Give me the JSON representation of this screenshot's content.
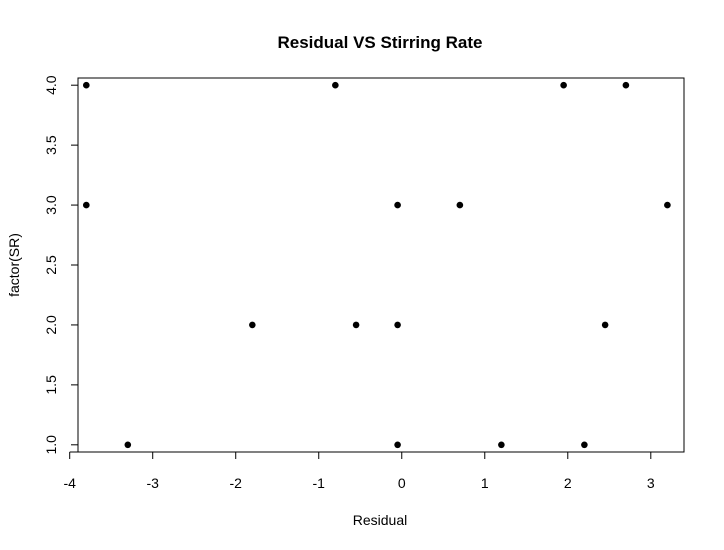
{
  "chart_data": {
    "type": "scatter",
    "title": "Residual VS Stirring Rate",
    "xlabel": "Residual",
    "ylabel": "factor(SR)",
    "xlim": [
      -3.9,
      3.4
    ],
    "ylim": [
      0.94,
      4.06
    ],
    "x_ticks": [
      -4,
      -3,
      -2,
      -1,
      0,
      1,
      2,
      3
    ],
    "x_tick_labels": [
      "-4",
      "-3",
      "-2",
      "-1",
      "0",
      "1",
      "2",
      "3"
    ],
    "y_ticks": [
      1.0,
      1.5,
      2.0,
      2.5,
      3.0,
      3.5,
      4.0
    ],
    "y_tick_labels": [
      "1.0",
      "1.5",
      "2.0",
      "2.5",
      "3.0",
      "3.5",
      "4.0"
    ],
    "grid": false,
    "point_color": "#000000",
    "points": [
      {
        "x": -3.8,
        "y": 4.0
      },
      {
        "x": -0.8,
        "y": 4.0
      },
      {
        "x": 1.95,
        "y": 4.0
      },
      {
        "x": 2.7,
        "y": 4.0
      },
      {
        "x": -3.8,
        "y": 3.0
      },
      {
        "x": -0.05,
        "y": 3.0
      },
      {
        "x": 0.7,
        "y": 3.0
      },
      {
        "x": 3.2,
        "y": 3.0
      },
      {
        "x": -1.8,
        "y": 2.0
      },
      {
        "x": -0.55,
        "y": 2.0
      },
      {
        "x": -0.05,
        "y": 2.0
      },
      {
        "x": 2.45,
        "y": 2.0
      },
      {
        "x": -3.3,
        "y": 1.0
      },
      {
        "x": -0.05,
        "y": 1.0
      },
      {
        "x": 1.2,
        "y": 1.0
      },
      {
        "x": 2.2,
        "y": 1.0
      }
    ]
  }
}
